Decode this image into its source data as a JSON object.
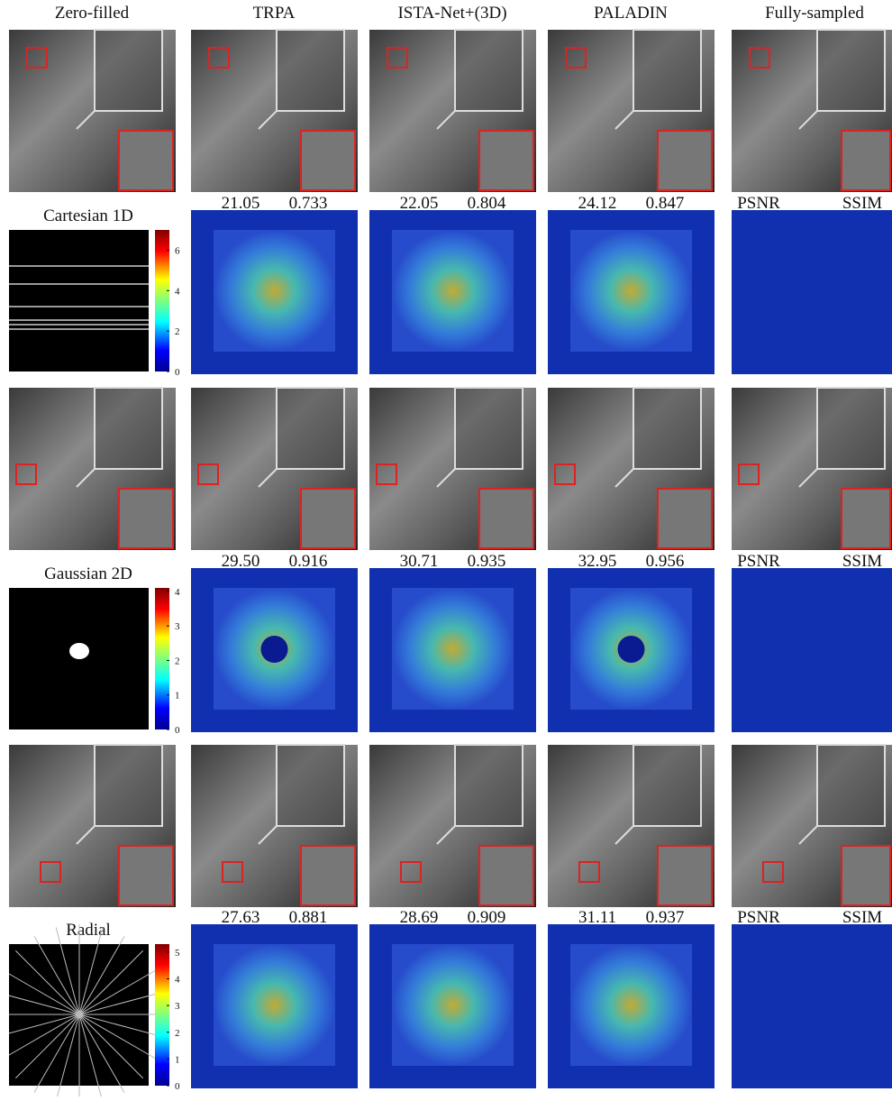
{
  "columns": [
    "Zero-filled",
    "TRPA",
    "ISTA-Net+(3D)",
    "PALADIN",
    "Fully-sampled"
  ],
  "rows": [
    {
      "mask": "Cartesian 1D",
      "colorbar_ticks": [
        0,
        2,
        4,
        6
      ],
      "colorbar_max": 7,
      "metrics": [
        [
          "21.05",
          "0.733"
        ],
        [
          "22.05",
          "0.804"
        ],
        [
          "24.12",
          "0.847"
        ]
      ],
      "metric_labels": [
        "PSNR",
        "SSIM"
      ]
    },
    {
      "mask": "Gaussian 2D",
      "colorbar_ticks": [
        0,
        1,
        2,
        3,
        4
      ],
      "colorbar_max": 4.1,
      "metrics": [
        [
          "29.50",
          "0.916"
        ],
        [
          "30.71",
          "0.935"
        ],
        [
          "32.95",
          "0.956"
        ]
      ],
      "metric_labels": [
        "PSNR",
        "SSIM"
      ]
    },
    {
      "mask": "Radial",
      "colorbar_ticks": [
        0,
        1,
        2,
        3,
        4,
        5
      ],
      "colorbar_max": 5.3,
      "metrics": [
        [
          "27.63",
          "0.881"
        ],
        [
          "28.69",
          "0.909"
        ],
        [
          "31.11",
          "0.937"
        ]
      ],
      "metric_labels": [
        "PSNR",
        "SSIM"
      ]
    }
  ]
}
